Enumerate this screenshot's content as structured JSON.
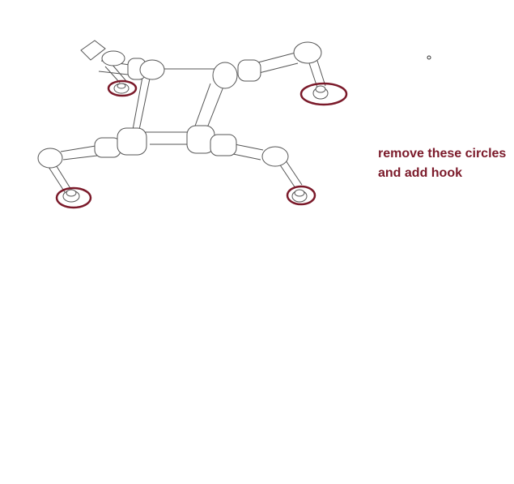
{
  "annotation": {
    "line1": "remove these circles",
    "line2": "and add hook",
    "color": "#7b1a2a"
  },
  "highlight_color": "#7b1a2a",
  "drawing": {
    "subject": "line drawing of a rectangular frame with four jointed arms, each ending in a small round foot",
    "highlighted_count": 4
  }
}
